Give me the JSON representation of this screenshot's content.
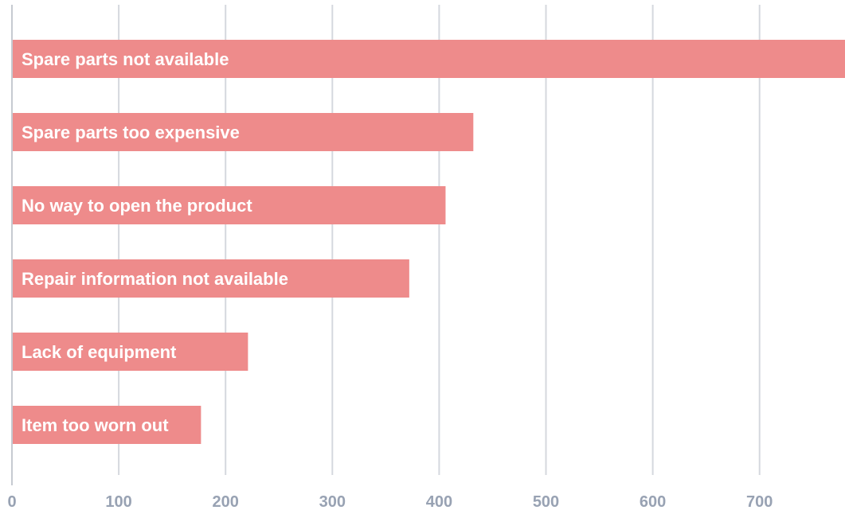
{
  "chart_data": {
    "type": "bar",
    "orientation": "horizontal",
    "title": "",
    "xlabel": "",
    "ylabel": "",
    "categories": [
      "Spare parts not available",
      "Spare parts too expensive",
      "No way to open the product",
      "Repair information not available",
      "Lack of equipment",
      "Item too worn out"
    ],
    "values": [
      780,
      432,
      406,
      372,
      221,
      177
    ],
    "xlim": [
      0,
      780
    ],
    "xticks": [
      0,
      100,
      200,
      300,
      400,
      500,
      600,
      700
    ],
    "grid": true,
    "bar_color": "#ee8b8b",
    "grid_color": "#d5d8de",
    "tick_color": "#98a2b3"
  }
}
